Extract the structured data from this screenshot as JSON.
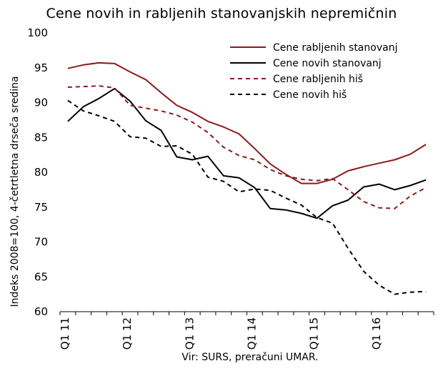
{
  "chart_data": {
    "type": "line",
    "title": "Cene novih in rabljenih stanovanjskih nepremičnin",
    "ylabel": "Indeks 2008=100, 4-četrtletna drseča sredina",
    "xlabel": "",
    "source": "Vir: SURS, preračuni UMAR.",
    "ylim": [
      60,
      100
    ],
    "yticks": [
      60,
      65,
      70,
      75,
      80,
      85,
      90,
      95,
      100
    ],
    "x": [
      "Q1 11",
      "Q2 11",
      "Q3 11",
      "Q4 11",
      "Q1 12",
      "Q2 12",
      "Q3 12",
      "Q4 12",
      "Q1 13",
      "Q2 13",
      "Q3 13",
      "Q4 13",
      "Q1 14",
      "Q2 14",
      "Q3 14",
      "Q4 14",
      "Q1 15",
      "Q2 15",
      "Q3 15",
      "Q4 15",
      "Q1 16",
      "Q2 16",
      "Q3 16",
      "Q4 16"
    ],
    "xtick_labels": [
      {
        "label": "Q1 11",
        "index": 0
      },
      {
        "label": "Q1 12",
        "index": 4
      },
      {
        "label": "Q1 13",
        "index": 8
      },
      {
        "label": "Q1 14",
        "index": 12
      },
      {
        "label": "Q1 15",
        "index": 16
      },
      {
        "label": "Q1 16",
        "index": 20
      }
    ],
    "grid": false,
    "legend_position": "top-right",
    "series": [
      {
        "name": "Cene rabljenih stanovanj",
        "color": "#8b1a1a",
        "dash": "solid",
        "values": [
          94.9,
          95.4,
          95.7,
          95.6,
          94.4,
          93.3,
          91.4,
          89.6,
          88.6,
          87.3,
          86.5,
          85.5,
          83.4,
          81.2,
          79.7,
          78.4,
          78.4,
          79.0,
          80.2,
          80.8,
          81.3,
          81.8,
          82.6,
          84.0
        ]
      },
      {
        "name": "Cene novih stanovanj",
        "color": "#000000",
        "dash": "solid",
        "values": [
          87.3,
          89.4,
          90.6,
          92.0,
          90.2,
          87.4,
          86.0,
          82.2,
          81.8,
          82.3,
          79.5,
          79.2,
          77.8,
          74.8,
          74.6,
          74.1,
          73.4,
          75.2,
          76.0,
          77.9,
          78.3,
          77.5,
          78.1,
          78.9
        ]
      },
      {
        "name": "Cene rabljenih hiš",
        "color": "#8b1a1a",
        "dash": "dashed",
        "values": [
          92.2,
          92.3,
          92.4,
          92.1,
          89.6,
          89.2,
          88.8,
          88.2,
          87.2,
          85.7,
          83.6,
          82.4,
          81.8,
          80.4,
          79.5,
          79.0,
          78.8,
          79.1,
          77.5,
          75.8,
          74.9,
          74.8,
          76.6,
          77.8
        ]
      },
      {
        "name": "Cene novih hiš",
        "color": "#000000",
        "dash": "dashed",
        "values": [
          90.3,
          88.8,
          88.1,
          87.3,
          85.1,
          84.9,
          83.7,
          83.8,
          82.6,
          79.3,
          78.7,
          77.2,
          77.6,
          77.4,
          76.3,
          75.3,
          73.5,
          72.7,
          69.1,
          65.8,
          63.8,
          62.5,
          62.8,
          62.9
        ]
      }
    ]
  }
}
